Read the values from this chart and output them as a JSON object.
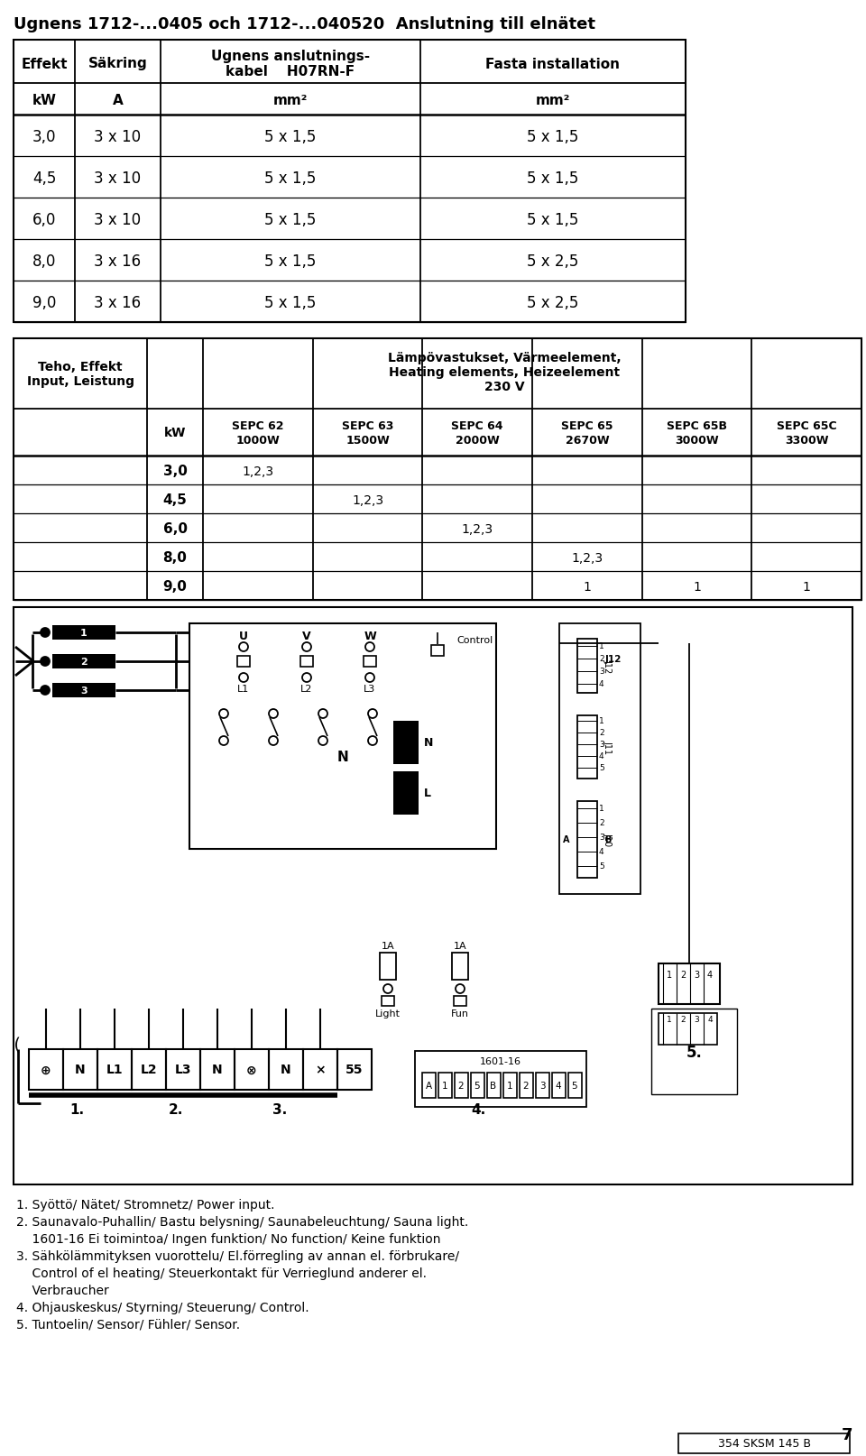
{
  "title": "Ugnens 1712-...0405 och 1712-...040520  Anslutning till elnätet",
  "t1_col_labels": [
    "Effekt",
    "Säkring",
    "Ugnens anslutnings-\nkabel    H07RN-F",
    "Fasta installation"
  ],
  "t1_unit_labels": [
    "kW",
    "A",
    "mm²",
    "mm²"
  ],
  "t1_rows": [
    [
      "3,0",
      "3 x 10",
      "5 x 1,5",
      "5 x 1,5"
    ],
    [
      "4,5",
      "3 x 10",
      "5 x 1,5",
      "5 x 1,5"
    ],
    [
      "6,0",
      "3 x 10",
      "5 x 1,5",
      "5 x 1,5"
    ],
    [
      "8,0",
      "3 x 16",
      "5 x 1,5",
      "5 x 2,5"
    ],
    [
      "9,0",
      "3 x 16",
      "5 x 1,5",
      "5 x 2,5"
    ]
  ],
  "t2_header_left": "Teho, Effekt\nInput, Leistung",
  "t2_header_right": "Lämpövastukset, Värmeelement,\nHeating elements, Heizeelement\n230 V",
  "t2_sepc_names": [
    "SEPC 62",
    "SEPC 63",
    "SEPC 64",
    "SEPC 65",
    "SEPC 65B",
    "SEPC 65C"
  ],
  "t2_sepc_watts": [
    "1000W",
    "1500W",
    "2000W",
    "2670W",
    "3000W",
    "3300W"
  ],
  "t2_kw_label": "kW",
  "t2_rows": [
    [
      "3,0",
      "1,2,3",
      "",
      "",
      "",
      "",
      ""
    ],
    [
      "4,5",
      "",
      "1,2,3",
      "",
      "",
      "",
      ""
    ],
    [
      "6,0",
      "",
      "",
      "1,2,3",
      "",
      "",
      ""
    ],
    [
      "8,0",
      "",
      "",
      "",
      "1,2,3",
      "",
      ""
    ],
    [
      "9,0",
      "",
      "",
      "",
      "1",
      "1",
      "1"
    ]
  ],
  "footnotes": [
    "1. Syöttö/ Nätet/ Stromnetz/ Power input.",
    "2. Saunavalo-Puhallin/ Bastu belysning/ Saunabeleuchtung/ Sauna light.",
    "    1601-16 Ei toimintoa/ Ingen funktion/ No function/ Keine funktion",
    "3. Sähkölämmityksen vuorottelu/ El.förregling av annan el. förbrukare/",
    "    Control of el heating/ Steuerkontakt für Verrieglund anderer el.",
    "    Verbraucher",
    "4. Ohjauskeskus/ Styrning/ Steuerung/ Control.",
    "5. Tuntoelin/ Sensor/ Fühler/ Sensor."
  ],
  "page_number": "7",
  "doc_ref": "354 SKSM 145 B",
  "bg_color": "#ffffff"
}
